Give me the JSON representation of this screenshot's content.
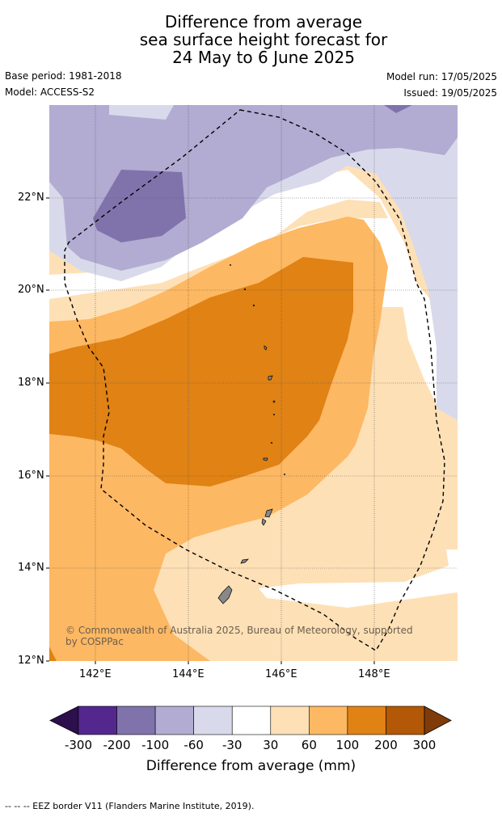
{
  "title": {
    "line1": "Difference from average",
    "line2": "sea surface height forecast for",
    "line3": "24 May to 6 June 2025"
  },
  "meta": {
    "base_period": "Base period: 1981-2018",
    "model": "Model: ACCESS-S2",
    "model_run": "Model run: 17/05/2025",
    "issued": "Issued: 19/05/2025"
  },
  "map": {
    "lat_labels": [
      "22°N",
      "20°N",
      "18°N",
      "16°N",
      "14°N",
      "12°N"
    ],
    "lon_labels": [
      "142°E",
      "144°E",
      "146°E",
      "148°E"
    ],
    "copyright": [
      "© Commonwealth of Australia 2025, Bureau of Meteorology, supported",
      "by COSPPac"
    ]
  },
  "colorbar": {
    "title": "Difference from average (mm)",
    "tick_labels": [
      "-300",
      "-200",
      "-100",
      "-60",
      "-30",
      "30",
      "60",
      "100",
      "200",
      "300"
    ],
    "colors": [
      "#2d0f4e",
      "#54278f",
      "#8073ac",
      "#b2abd2",
      "#d8daeb",
      "#ffffff",
      "#fee0b6",
      "#fdb863",
      "#e08214",
      "#b35806",
      "#7f3b08"
    ]
  },
  "footer": "--  --  -- EEZ border V11 (Flanders Marine Institute, 2019)."
}
